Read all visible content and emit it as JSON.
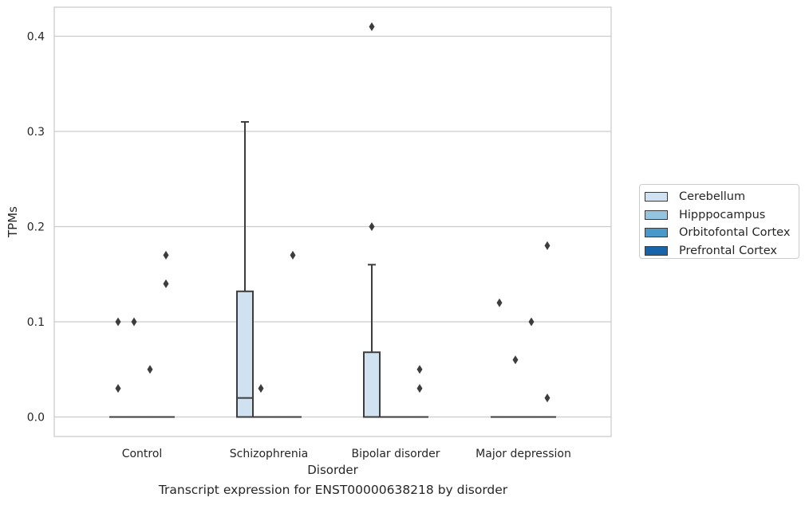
{
  "chart_data": {
    "type": "box",
    "caption": "Transcript expression for ENST00000638218 by disorder",
    "xlabel": "Disorder",
    "ylabel": "TPMs",
    "ylim": [
      -0.02,
      0.43
    ],
    "yticks": [
      0.0,
      0.1,
      0.2,
      0.3,
      0.4
    ],
    "ytick_labels": [
      "0.0",
      "0.1",
      "0.2",
      "0.3",
      "0.4"
    ],
    "grid": "horizontal",
    "legend_position": "right",
    "categories": [
      "Control",
      "Schizophrenia",
      "Bipolar disorder",
      "Major depression"
    ],
    "series": [
      {
        "name": "Cerebellum",
        "color": "#d0e1f2",
        "boxes": [
          {
            "q1": 0,
            "median": 0,
            "q3": 0,
            "whislo": 0,
            "whishi": 0,
            "fliers": [
              0.03,
              0.1
            ]
          },
          {
            "q1": 0,
            "median": 0.02,
            "q3": 0.132,
            "whislo": 0,
            "whishi": 0.31,
            "fliers": []
          },
          {
            "q1": 0,
            "median": 0,
            "q3": 0.068,
            "whislo": 0,
            "whishi": 0.16,
            "fliers": [
              0.2,
              0.41
            ]
          },
          {
            "q1": 0,
            "median": 0,
            "q3": 0,
            "whislo": 0,
            "whishi": 0,
            "fliers": [
              0.12
            ]
          }
        ]
      },
      {
        "name": "Hipppocampus",
        "color": "#94c4df",
        "boxes": [
          {
            "q1": 0,
            "median": 0,
            "q3": 0,
            "whislo": 0,
            "whishi": 0,
            "fliers": [
              0.1
            ]
          },
          {
            "q1": 0,
            "median": 0,
            "q3": 0,
            "whislo": 0,
            "whishi": 0,
            "fliers": [
              0.03
            ]
          },
          {
            "q1": 0,
            "median": 0,
            "q3": 0,
            "whislo": 0,
            "whishi": 0,
            "fliers": []
          },
          {
            "q1": 0,
            "median": 0,
            "q3": 0,
            "whislo": 0,
            "whishi": 0,
            "fliers": [
              0.06
            ]
          }
        ]
      },
      {
        "name": "Orbitofontal Cortex",
        "color": "#4a98c9",
        "boxes": [
          {
            "q1": 0,
            "median": 0,
            "q3": 0,
            "whislo": 0,
            "whishi": 0,
            "fliers": [
              0.05
            ]
          },
          {
            "q1": 0,
            "median": 0,
            "q3": 0,
            "whislo": 0,
            "whishi": 0,
            "fliers": []
          },
          {
            "q1": 0,
            "median": 0,
            "q3": 0,
            "whislo": 0,
            "whishi": 0,
            "fliers": []
          },
          {
            "q1": 0,
            "median": 0,
            "q3": 0,
            "whislo": 0,
            "whishi": 0,
            "fliers": [
              0.1
            ]
          }
        ]
      },
      {
        "name": "Prefrontal Cortex",
        "color": "#1764ab",
        "boxes": [
          {
            "q1": 0,
            "median": 0,
            "q3": 0,
            "whislo": 0,
            "whishi": 0,
            "fliers": [
              0.14,
              0.17
            ]
          },
          {
            "q1": 0,
            "median": 0,
            "q3": 0,
            "whislo": 0,
            "whishi": 0,
            "fliers": [
              0.17
            ]
          },
          {
            "q1": 0,
            "median": 0,
            "q3": 0,
            "whislo": 0,
            "whishi": 0,
            "fliers": [
              0.03,
              0.05
            ]
          },
          {
            "q1": 0,
            "median": 0,
            "q3": 0,
            "whislo": 0,
            "whishi": 0,
            "fliers": [
              0.02,
              0.18
            ]
          }
        ]
      }
    ]
  },
  "legend": {
    "items": [
      {
        "label": "Cerebellum",
        "color": "#d0e1f2"
      },
      {
        "label": "Hipppocampus",
        "color": "#94c4df"
      },
      {
        "label": "Orbitofontal Cortex",
        "color": "#4a98c9"
      },
      {
        "label": "Prefrontal Cortex",
        "color": "#1764ab"
      }
    ]
  }
}
